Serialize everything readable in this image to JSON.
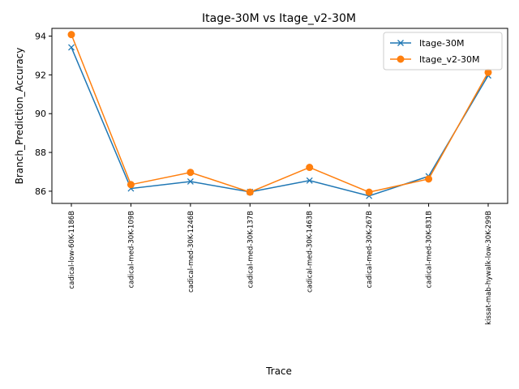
{
  "chart_data": {
    "type": "line",
    "title": "Itage-30M vs Itage_v2-30M",
    "xlabel": "Trace",
    "ylabel": "Branch_Prediction_Accuracy",
    "categories": [
      "cadical-low-60K-1186B",
      "cadical-med-30K-109B",
      "cadical-med-30K-1246B",
      "cadical-med-30K-137B",
      "cadical-med-30K-1463B",
      "cadical-med-30K-267B",
      "cadical-med-30K-831B",
      "kissat-mab-hywalk-low-30K-299B"
    ],
    "series": [
      {
        "name": "Itage-30M",
        "color": "#1f77b4",
        "marker": "x",
        "values": [
          93.42,
          86.14,
          86.5,
          85.96,
          86.55,
          85.76,
          86.77,
          91.97
        ]
      },
      {
        "name": "Itage_v2-30M",
        "color": "#ff7f0e",
        "marker": "o",
        "values": [
          94.08,
          86.34,
          86.97,
          85.95,
          87.23,
          85.95,
          86.63,
          92.13
        ]
      }
    ],
    "ylim": [
      85.37,
      94.4
    ],
    "yticks": [
      86,
      88,
      90,
      92,
      94
    ],
    "grid": false,
    "legend_position": "top-right"
  }
}
